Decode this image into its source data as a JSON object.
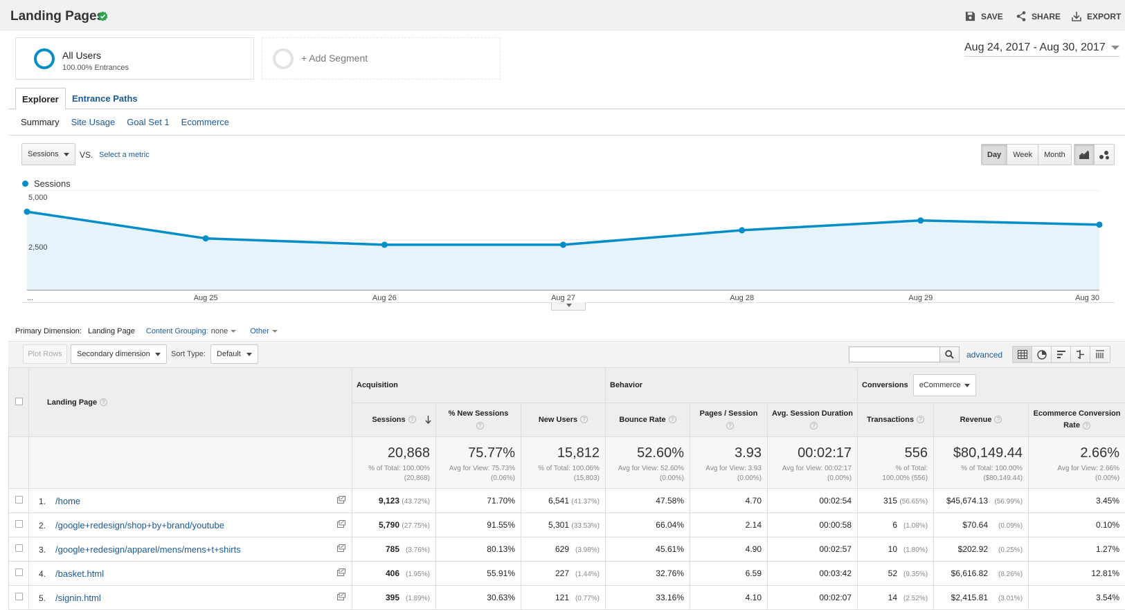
{
  "header": {
    "title": "Landing Pages",
    "actions": {
      "save": "SAVE",
      "share": "SHARE",
      "export": "EXPORT"
    }
  },
  "segments": {
    "all_users_title": "All Users",
    "all_users_sub": "100.00% Entrances",
    "add_segment": "+ Add Segment"
  },
  "date_range": "Aug 24, 2017 - Aug 30, 2017",
  "tabs": {
    "explorer": "Explorer",
    "entrance_paths": "Entrance Paths"
  },
  "subtabs": {
    "summary": "Summary",
    "site_usage": "Site Usage",
    "goal_set": "Goal Set 1",
    "ecommerce": "Ecommerce"
  },
  "chart_controls": {
    "metric": "Sessions",
    "vs": "VS.",
    "select_metric": "Select a metric",
    "day": "Day",
    "week": "Week",
    "month": "Month"
  },
  "chart_data": {
    "type": "line",
    "legend": "Sessions",
    "x": [
      "...",
      "Aug 25",
      "Aug 26",
      "Aug 27",
      "Aug 28",
      "Aug 29",
      "Aug 30"
    ],
    "y_ticks": [
      "5,000",
      "2,500"
    ],
    "ylim": [
      0,
      5000
    ],
    "series": [
      {
        "name": "Sessions",
        "values": [
          3920,
          2580,
          2260,
          2260,
          2990,
          3480,
          3270
        ]
      }
    ],
    "color": "#058dc7"
  },
  "dimension_row": {
    "primary_label": "Primary Dimension:",
    "landing_page": "Landing Page",
    "content_grouping": "Content Grouping:",
    "content_grouping_value": "none",
    "other": "Other"
  },
  "toolbar": {
    "plot_rows": "Plot Rows",
    "secondary_dimension": "Secondary dimension",
    "sort_type_label": "Sort Type:",
    "sort_type": "Default",
    "advanced": "advanced"
  },
  "table": {
    "groups": {
      "acquisition": "Acquisition",
      "behavior": "Behavior",
      "conversions": "Conversions",
      "conversions_select": "eCommerce"
    },
    "columns": {
      "landing_page": "Landing Page",
      "sessions": "Sessions",
      "new_sessions": "% New Sessions",
      "new_users": "New Users",
      "bounce_rate": "Bounce Rate",
      "pages_session": "Pages / Session",
      "avg_duration": "Avg. Session Duration",
      "transactions": "Transactions",
      "revenue": "Revenue",
      "conv_rate": "Ecommerce Conversion Rate"
    },
    "totals": {
      "sessions": "20,868",
      "sessions_sub1": "% of Total: 100.00%",
      "sessions_sub2": "(20,868)",
      "new_sessions": "75.77%",
      "new_sessions_sub1": "Avg for View: 75.73%",
      "new_sessions_sub2": "(0.06%)",
      "new_users": "15,812",
      "new_users_sub1": "% of Total: 100.06%",
      "new_users_sub2": "(15,803)",
      "bounce_rate": "52.60%",
      "bounce_rate_sub1": "Avg for View: 52.60%",
      "bounce_rate_sub2": "(0.00%)",
      "pages_session": "3.93",
      "pages_session_sub1": "Avg for View: 3.93",
      "pages_session_sub2": "(0.00%)",
      "avg_duration": "00:02:17",
      "avg_duration_sub1": "Avg for View: 00:02:17",
      "avg_duration_sub2": "(0.00%)",
      "transactions": "556",
      "transactions_sub1": "% of Total:",
      "transactions_sub2": "100.00% (556)",
      "revenue": "$80,149.44",
      "revenue_sub1": "% of Total: 100.00%",
      "revenue_sub2": "($80,149.44)",
      "conv_rate": "2.66%",
      "conv_rate_sub1": "Avg for View: 2.66%",
      "conv_rate_sub2": "(0.00%)"
    },
    "rows": [
      {
        "num": "1.",
        "path": "/home",
        "sessions": "9,123",
        "sessions_pct": "(43.72%)",
        "new_sessions": "71.70%",
        "new_users": "6,541",
        "new_users_pct": "(41.37%)",
        "bounce": "47.58%",
        "pages": "4.70",
        "duration": "00:02:54",
        "transactions": "315",
        "transactions_pct": "(56.65%)",
        "revenue": "$45,674.13",
        "revenue_pct": "(56.99%)",
        "conv": "3.45%"
      },
      {
        "num": "2.",
        "path": "/google+redesign/shop+by+brand/youtube",
        "sessions": "5,790",
        "sessions_pct": "(27.75%)",
        "new_sessions": "91.55%",
        "new_users": "5,301",
        "new_users_pct": "(33.53%)",
        "bounce": "66.04%",
        "pages": "2.14",
        "duration": "00:00:58",
        "transactions": "6",
        "transactions_pct": "(1.08%)",
        "revenue": "$70.64",
        "revenue_pct": "(0.09%)",
        "conv": "0.10%"
      },
      {
        "num": "3.",
        "path": "/google+redesign/apparel/mens/mens+t+shirts",
        "sessions": "785",
        "sessions_pct": "(3.76%)",
        "new_sessions": "80.13%",
        "new_users": "629",
        "new_users_pct": "(3.98%)",
        "bounce": "45.61%",
        "pages": "4.90",
        "duration": "00:02:57",
        "transactions": "10",
        "transactions_pct": "(1.80%)",
        "revenue": "$202.92",
        "revenue_pct": "(0.25%)",
        "conv": "1.27%"
      },
      {
        "num": "4.",
        "path": "/basket.html",
        "sessions": "406",
        "sessions_pct": "(1.95%)",
        "new_sessions": "55.91%",
        "new_users": "227",
        "new_users_pct": "(1.44%)",
        "bounce": "32.76%",
        "pages": "6.59",
        "duration": "00:03:42",
        "transactions": "52",
        "transactions_pct": "(9.35%)",
        "revenue": "$6,616.82",
        "revenue_pct": "(8.26%)",
        "conv": "12.81%"
      },
      {
        "num": "5.",
        "path": "/signin.html",
        "sessions": "395",
        "sessions_pct": "(1.89%)",
        "new_sessions": "30.63%",
        "new_users": "121",
        "new_users_pct": "(0.77%)",
        "bounce": "33.16%",
        "pages": "4.10",
        "duration": "00:02:07",
        "transactions": "14",
        "transactions_pct": "(2.52%)",
        "revenue": "$2,415.81",
        "revenue_pct": "(3.01%)",
        "conv": "3.54%"
      }
    ]
  }
}
